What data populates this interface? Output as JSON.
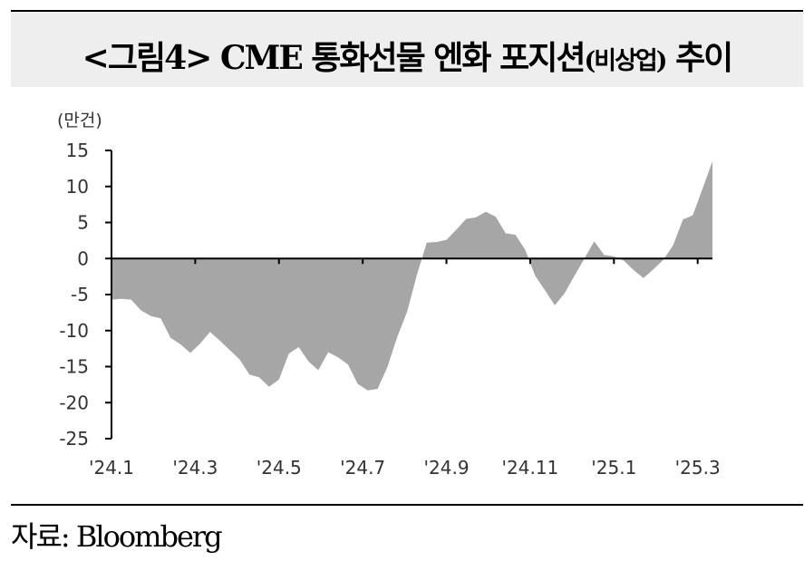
{
  "title": {
    "main": "<그림4> CME 통화선물 엔화 포지션",
    "small": "(비상업)",
    "tail": " 추이"
  },
  "source": "자료: Bloomberg",
  "chart_data": {
    "type": "area",
    "unit_label": "(만건)",
    "ylim": [
      -25,
      15
    ],
    "y_ticks": [
      15,
      10,
      5,
      0,
      -5,
      -10,
      -15,
      -20,
      -25
    ],
    "x_tick_labels": [
      "'24.1",
      "'24.3",
      "'24.5",
      "'24.7",
      "'24.9",
      "'24.11",
      "'25.1",
      "'25.3"
    ],
    "x_tick_weeks": [
      0,
      8.5,
      17,
      25.5,
      34,
      42.5,
      51,
      59.5
    ],
    "fill_color": "#a6a6a6",
    "series": [
      {
        "values": [
          -5.7,
          -5.6,
          -5.7,
          -7.2,
          -8.0,
          -8.3,
          -11.0,
          -11.9,
          -13.1,
          -11.8,
          -10.2,
          -11.4,
          -12.7,
          -14.0,
          -16.1,
          -16.5,
          -17.8,
          -16.8,
          -13.2,
          -12.3,
          -14.3,
          -15.5,
          -13.0,
          -13.7,
          -14.7,
          -17.4,
          -18.3,
          -18.1,
          -15.1,
          -10.9,
          -7.4,
          -2.3,
          2.2,
          2.3,
          2.6,
          4.0,
          5.5,
          5.7,
          6.5,
          5.8,
          3.5,
          3.3,
          1.2,
          -2.4,
          -4.4,
          -6.5,
          -4.8,
          -2.4,
          0.0,
          2.4,
          0.5,
          0.3,
          -0.3,
          -1.6,
          -2.7,
          -1.5,
          -0.2,
          1.8,
          5.4,
          6.0,
          9.7,
          13.5
        ]
      }
    ],
    "grid": false
  }
}
